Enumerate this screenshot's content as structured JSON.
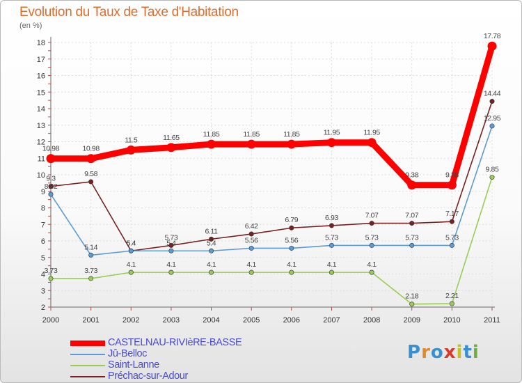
{
  "header": {
    "title": "Evolution du Taux de Taxe d'Habitation",
    "subtitle": "(en %)"
  },
  "logo": {
    "text": "Proxiti",
    "colors": [
      "#3a8fd0",
      "#e08a2a",
      "#3a8fd0",
      "#d83a2a",
      "#c8c020",
      "#3a8fd0",
      "#6ab03a"
    ]
  },
  "chart_data": {
    "type": "line",
    "title": "Evolution du Taux de Taxe d'Habitation",
    "ylabel": "(en %)",
    "xlabel": "",
    "x": [
      "2000",
      "2001",
      "2002",
      "2003",
      "2004",
      "2005",
      "2006",
      "2007",
      "2008",
      "2009",
      "2010",
      "2011"
    ],
    "ylim": [
      2,
      18
    ],
    "yticks": [
      2,
      3,
      4,
      5,
      6,
      7,
      8,
      9,
      10,
      11,
      12,
      13,
      14,
      15,
      16,
      17,
      18
    ],
    "grid": true,
    "legend_position": "bottom",
    "series": [
      {
        "name": "CASTELNAU-RIVIèRE-BASSE",
        "color": "#ff0000",
        "width": "thick",
        "values": [
          10.98,
          10.98,
          11.5,
          11.65,
          11.85,
          11.85,
          11.85,
          11.95,
          11.95,
          9.38,
          9.38,
          17.78
        ],
        "labels": [
          "10.98",
          "10.98",
          "11.5",
          "11.65",
          "11.85",
          "11.85",
          "11.85",
          "11.95",
          "11.95",
          "9.38",
          "9.38",
          "17.78"
        ]
      },
      {
        "name": "Jû-Belloc",
        "color": "#5b9bd5",
        "width": "thin",
        "values": [
          8.82,
          5.14,
          5.4,
          5.4,
          5.4,
          5.56,
          5.56,
          5.73,
          5.73,
          5.73,
          5.73,
          12.95
        ],
        "labels": [
          "8.82",
          "5.14",
          "5.4",
          "5.4",
          "5.4",
          "5.56",
          "5.56",
          "5.73",
          "5.73",
          "5.73",
          "5.73",
          "12.95"
        ]
      },
      {
        "name": "Saint-Lanne",
        "color": "#99cc55",
        "width": "thin",
        "values": [
          3.73,
          3.73,
          4.1,
          4.1,
          4.1,
          4.1,
          4.1,
          4.1,
          4.1,
          2.18,
          2.21,
          9.85
        ],
        "labels": [
          "3.73",
          "3.73",
          "4.1",
          "4.1",
          "4.1",
          "4.1",
          "4.1",
          "4.1",
          "4.1",
          "2.18",
          "2.21",
          "9.85"
        ]
      },
      {
        "name": "Préchac-sur-Adour",
        "color": "#7a1f1f",
        "width": "thin",
        "values": [
          9.3,
          9.58,
          5.4,
          5.73,
          6.11,
          6.42,
          6.79,
          6.93,
          7.07,
          7.07,
          7.17,
          14.44
        ],
        "labels": [
          "9.3",
          "9.58",
          "5.4",
          "5.73",
          "6.11",
          "6.42",
          "6.79",
          "6.93",
          "7.07",
          "7.07",
          "7.17",
          "14.44"
        ]
      }
    ]
  }
}
